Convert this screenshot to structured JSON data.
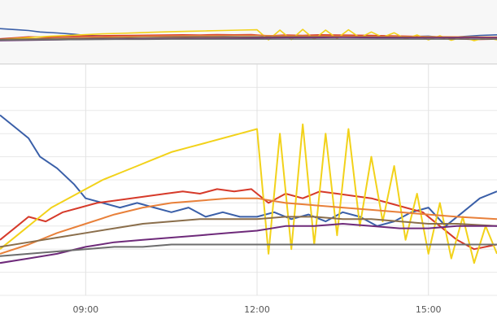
{
  "chart_data": {
    "type": "line",
    "title": "",
    "xlabel": "",
    "ylabel": "",
    "x_unit": "hour of day",
    "x_range": [
      7.5,
      16.2
    ],
    "x_ticks": [
      {
        "value": 9,
        "label": "09:00"
      },
      {
        "value": 12,
        "label": "12:00"
      },
      {
        "value": 15,
        "label": "15:00"
      }
    ],
    "y_range": [
      0,
      100
    ],
    "grid": true,
    "legend": "none",
    "series": [
      {
        "color": "#3a5fa8",
        "values": [
          [
            7.5,
            78
          ],
          [
            7.8,
            72
          ],
          [
            8.0,
            68
          ],
          [
            8.2,
            60
          ],
          [
            8.5,
            55
          ],
          [
            8.8,
            48
          ],
          [
            9.0,
            42
          ],
          [
            9.3,
            40
          ],
          [
            9.6,
            38
          ],
          [
            9.9,
            40
          ],
          [
            10.2,
            38
          ],
          [
            10.5,
            36
          ],
          [
            10.8,
            38
          ],
          [
            11.1,
            34
          ],
          [
            11.4,
            36
          ],
          [
            11.7,
            34
          ],
          [
            12.0,
            34
          ],
          [
            12.3,
            36
          ],
          [
            12.6,
            33
          ],
          [
            12.9,
            35
          ],
          [
            13.2,
            32
          ],
          [
            13.5,
            36
          ],
          [
            13.8,
            34
          ],
          [
            14.1,
            30
          ],
          [
            14.4,
            32
          ],
          [
            14.7,
            36
          ],
          [
            15.0,
            38
          ],
          [
            15.3,
            30
          ],
          [
            15.6,
            36
          ],
          [
            15.9,
            42
          ],
          [
            16.2,
            45
          ]
        ]
      },
      {
        "color": "#d63a2a",
        "values": [
          [
            7.5,
            24
          ],
          [
            7.8,
            30
          ],
          [
            8.0,
            34
          ],
          [
            8.3,
            32
          ],
          [
            8.6,
            36
          ],
          [
            8.9,
            38
          ],
          [
            9.2,
            40
          ],
          [
            9.5,
            41
          ],
          [
            9.8,
            42
          ],
          [
            10.1,
            43
          ],
          [
            10.4,
            44
          ],
          [
            10.7,
            45
          ],
          [
            11.0,
            44
          ],
          [
            11.3,
            46
          ],
          [
            11.6,
            45
          ],
          [
            11.9,
            46
          ],
          [
            12.2,
            40
          ],
          [
            12.5,
            44
          ],
          [
            12.8,
            42
          ],
          [
            13.1,
            45
          ],
          [
            13.4,
            44
          ],
          [
            13.7,
            43
          ],
          [
            14.0,
            42
          ],
          [
            14.3,
            40
          ],
          [
            14.6,
            38
          ],
          [
            14.9,
            36
          ],
          [
            15.2,
            30
          ],
          [
            15.5,
            24
          ],
          [
            15.8,
            20
          ],
          [
            16.2,
            22
          ]
        ]
      },
      {
        "color": "#f2d21a",
        "values": [
          [
            7.5,
            20
          ],
          [
            7.8,
            26
          ],
          [
            8.1,
            32
          ],
          [
            8.4,
            38
          ],
          [
            8.7,
            42
          ],
          [
            9.0,
            46
          ],
          [
            9.3,
            50
          ],
          [
            9.6,
            53
          ],
          [
            9.9,
            56
          ],
          [
            10.2,
            59
          ],
          [
            10.5,
            62
          ],
          [
            10.8,
            64
          ],
          [
            11.1,
            66
          ],
          [
            11.4,
            68
          ],
          [
            11.7,
            70
          ],
          [
            12.0,
            72
          ],
          [
            12.2,
            18
          ],
          [
            12.4,
            70
          ],
          [
            12.6,
            20
          ],
          [
            12.8,
            74
          ],
          [
            13.0,
            22
          ],
          [
            13.2,
            70
          ],
          [
            13.4,
            26
          ],
          [
            13.6,
            72
          ],
          [
            13.8,
            30
          ],
          [
            14.0,
            60
          ],
          [
            14.2,
            32
          ],
          [
            14.4,
            56
          ],
          [
            14.6,
            24
          ],
          [
            14.8,
            44
          ],
          [
            15.0,
            18
          ],
          [
            15.2,
            40
          ],
          [
            15.4,
            16
          ],
          [
            15.6,
            34
          ],
          [
            15.8,
            14
          ],
          [
            16.0,
            30
          ],
          [
            16.2,
            18
          ]
        ]
      },
      {
        "color": "#e8803a",
        "values": [
          [
            7.5,
            18
          ],
          [
            8.0,
            22
          ],
          [
            8.5,
            27
          ],
          [
            9.0,
            31
          ],
          [
            9.5,
            35
          ],
          [
            10.0,
            38
          ],
          [
            10.5,
            40
          ],
          [
            11.0,
            41
          ],
          [
            11.5,
            42
          ],
          [
            12.0,
            42
          ],
          [
            12.5,
            40
          ],
          [
            13.0,
            39
          ],
          [
            13.5,
            38
          ],
          [
            14.0,
            37
          ],
          [
            14.5,
            36
          ],
          [
            15.0,
            35
          ],
          [
            15.5,
            34
          ],
          [
            16.2,
            33
          ]
        ]
      },
      {
        "color": "#8a6e4b",
        "values": [
          [
            7.5,
            21
          ],
          [
            8.0,
            23
          ],
          [
            8.5,
            25
          ],
          [
            9.0,
            27
          ],
          [
            9.5,
            29
          ],
          [
            10.0,
            31
          ],
          [
            10.5,
            32
          ],
          [
            11.0,
            33
          ],
          [
            11.5,
            33
          ],
          [
            12.0,
            33
          ],
          [
            12.5,
            34
          ],
          [
            13.0,
            34
          ],
          [
            13.5,
            33
          ],
          [
            14.0,
            33
          ],
          [
            14.5,
            32
          ],
          [
            15.0,
            31
          ],
          [
            15.5,
            31
          ],
          [
            16.2,
            30
          ]
        ]
      },
      {
        "color": "#6e2a7a",
        "values": [
          [
            7.5,
            14
          ],
          [
            8.0,
            16
          ],
          [
            8.5,
            18
          ],
          [
            9.0,
            21
          ],
          [
            9.5,
            23
          ],
          [
            10.0,
            24
          ],
          [
            10.5,
            25
          ],
          [
            11.0,
            26
          ],
          [
            11.5,
            27
          ],
          [
            12.0,
            28
          ],
          [
            12.5,
            30
          ],
          [
            13.0,
            30
          ],
          [
            13.5,
            31
          ],
          [
            14.0,
            30
          ],
          [
            14.5,
            29
          ],
          [
            15.0,
            29
          ],
          [
            15.5,
            30
          ],
          [
            16.2,
            30
          ]
        ]
      },
      {
        "color": "#6d6d6d",
        "values": [
          [
            7.5,
            17
          ],
          [
            8.0,
            18
          ],
          [
            8.5,
            19
          ],
          [
            9.0,
            20
          ],
          [
            9.5,
            21
          ],
          [
            10.0,
            21
          ],
          [
            10.5,
            22
          ],
          [
            11.0,
            22
          ],
          [
            11.5,
            22
          ],
          [
            12.0,
            22
          ],
          [
            12.5,
            22
          ],
          [
            13.0,
            22
          ],
          [
            13.5,
            22
          ],
          [
            14.0,
            22
          ],
          [
            14.5,
            22
          ],
          [
            15.0,
            22
          ],
          [
            15.5,
            22
          ],
          [
            16.2,
            22
          ]
        ]
      }
    ]
  }
}
